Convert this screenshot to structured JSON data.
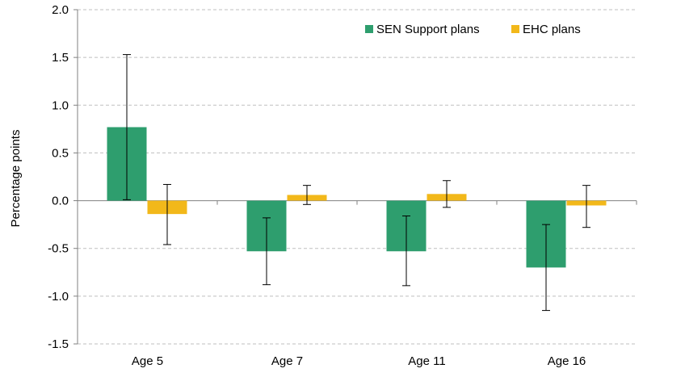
{
  "chart_data": {
    "type": "bar",
    "title": "",
    "xlabel": "",
    "ylabel": "Percentage points",
    "ylim": [
      -1.5,
      2.0
    ],
    "yticks": [
      2.0,
      1.5,
      1.0,
      0.5,
      0.0,
      -0.5,
      -1.0,
      -1.5
    ],
    "ytick_labels": [
      "2.0",
      "1.5",
      "1.0",
      "0.5",
      "0.0",
      "-0.5",
      "-1.0",
      "-1.5"
    ],
    "grid": true,
    "legend_position": "top-right",
    "categories": [
      "Age 5",
      "Age 7",
      "Age 11",
      "Age 16"
    ],
    "series": [
      {
        "name": "SEN Support plans",
        "color": "#2E9E6E",
        "values": [
          0.77,
          -0.53,
          -0.53,
          -0.7
        ],
        "error_low": [
          0.01,
          -0.88,
          -0.89,
          -1.15
        ],
        "error_high": [
          1.53,
          -0.18,
          -0.16,
          -0.25
        ]
      },
      {
        "name": "EHC plans",
        "color": "#F2B81A",
        "values": [
          -0.14,
          0.06,
          0.07,
          -0.05
        ],
        "error_low": [
          -0.46,
          -0.04,
          -0.07,
          -0.28
        ],
        "error_high": [
          0.17,
          0.16,
          0.21,
          0.16
        ]
      }
    ]
  }
}
